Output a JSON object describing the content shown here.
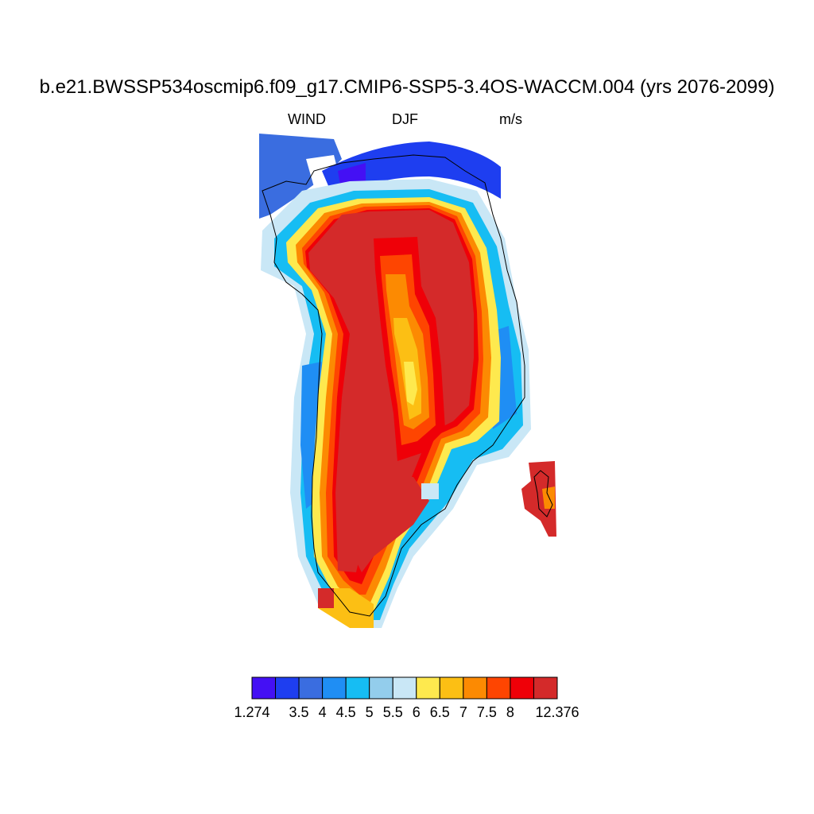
{
  "title": "b.e21.BWSSP534oscmip6.f09_g17.CMIP6-SSP5-3.4OS-WACCM.004 (yrs 2076-2099)",
  "subtitle": {
    "variable": "WIND",
    "season": "DJF",
    "units": "m/s"
  },
  "colorbar": {
    "colors": [
      "#4410f4",
      "#1e3ef0",
      "#3a6de0",
      "#1f8ef4",
      "#16bdf3",
      "#93cdec",
      "#c9e7f6",
      "#fee94e",
      "#fcbf14",
      "#fc8a02",
      "#fe4501",
      "#ef0008",
      "#d42a2a"
    ],
    "labels": [
      "1.274",
      "3.5",
      "4",
      "4.5",
      "5",
      "5.5",
      "6",
      "6.5",
      "7",
      "7.5",
      "8",
      "12.376"
    ]
  },
  "chart_data": {
    "type": "heatmap",
    "title": "b.e21.BWSSP534oscmip6.f09_g17.CMIP6-SSP5-3.4OS-WACCM.004 (yrs 2076-2099)",
    "variable": "WIND",
    "season": "DJF",
    "units": "m/s",
    "region": "Greenland",
    "value_range": [
      1.274,
      12.376
    ],
    "levels": [
      3.5,
      4,
      4.5,
      5,
      5.5,
      6,
      6.5,
      7,
      7.5,
      8
    ],
    "pattern": {
      "interior_ice_sheet": "12.376 (above 8 m/s)",
      "central_ridge": "6.5 - 8 m/s",
      "coastal_margins": "4 - 6 m/s",
      "northern_coast": "1.274 - 4 m/s"
    }
  }
}
